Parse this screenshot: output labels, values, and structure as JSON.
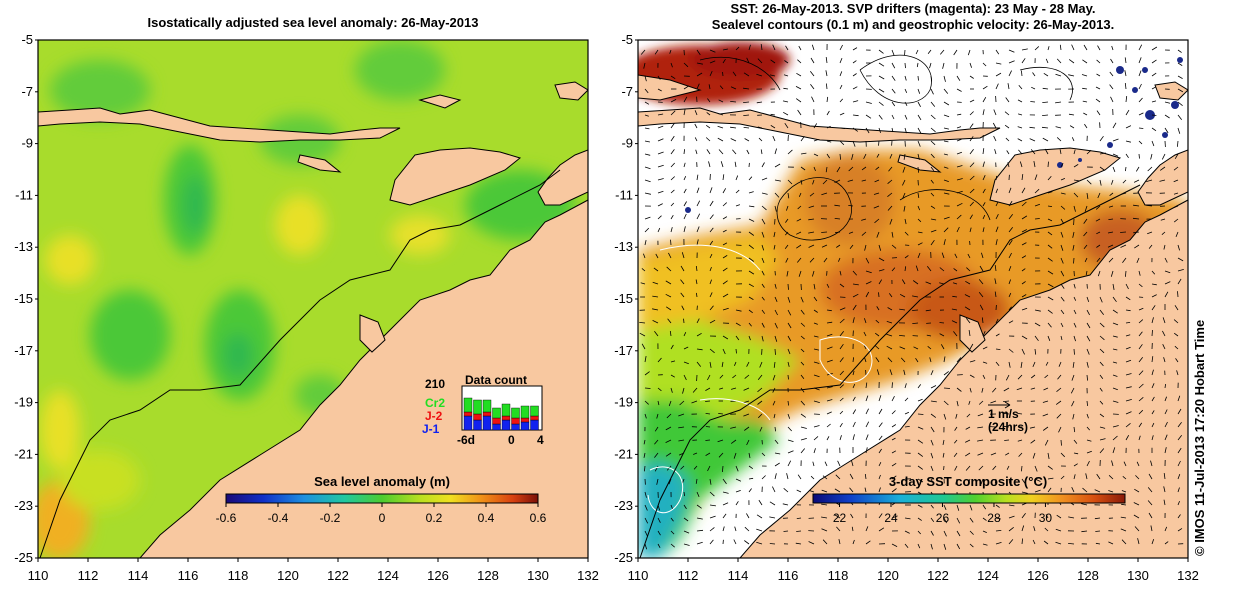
{
  "left_map": {
    "title": "Isostatically adjusted sea level anomaly: 26-May-2013",
    "colorbar": {
      "label": "Sea level anomaly (m)",
      "ticks": [
        "-0.6",
        "-0.4",
        "-0.2",
        "0",
        "0.2",
        "0.4",
        "0.6"
      ]
    },
    "data_count": {
      "title": "Data count",
      "max_value": "210",
      "series": [
        {
          "name": "Cr2",
          "color": "#22dd22"
        },
        {
          "name": "J-2",
          "color": "#ee1111"
        },
        {
          "name": "J-1",
          "color": "#1122ee"
        }
      ],
      "x_ticks": [
        "-6d",
        "0",
        "4"
      ]
    }
  },
  "right_map": {
    "title_line1": "SST: 26-May-2013. SVP drifters (magenta): 23 May - 28 May.",
    "title_line2": "Sealevel contours (0.1 m) and geostrophic velocity: 26-May-2013.",
    "colorbar": {
      "label": "3-day SST composite (°C)",
      "ticks": [
        "22",
        "24",
        "26",
        "28",
        "30"
      ]
    },
    "scale_arrow": {
      "label": "1 m/s",
      "sublabel": "(24hrs)"
    }
  },
  "axes": {
    "y_ticks": [
      "-5",
      "-7",
      "-9",
      "-11",
      "-13",
      "-15",
      "-17",
      "-19",
      "-21",
      "-23",
      "-25"
    ],
    "x_ticks": [
      "110",
      "112",
      "114",
      "116",
      "118",
      "120",
      "122",
      "124",
      "126",
      "128",
      "130",
      "132"
    ]
  },
  "credit": "© IMOS 11-Jul-2013 17:20 Hobart Time"
}
